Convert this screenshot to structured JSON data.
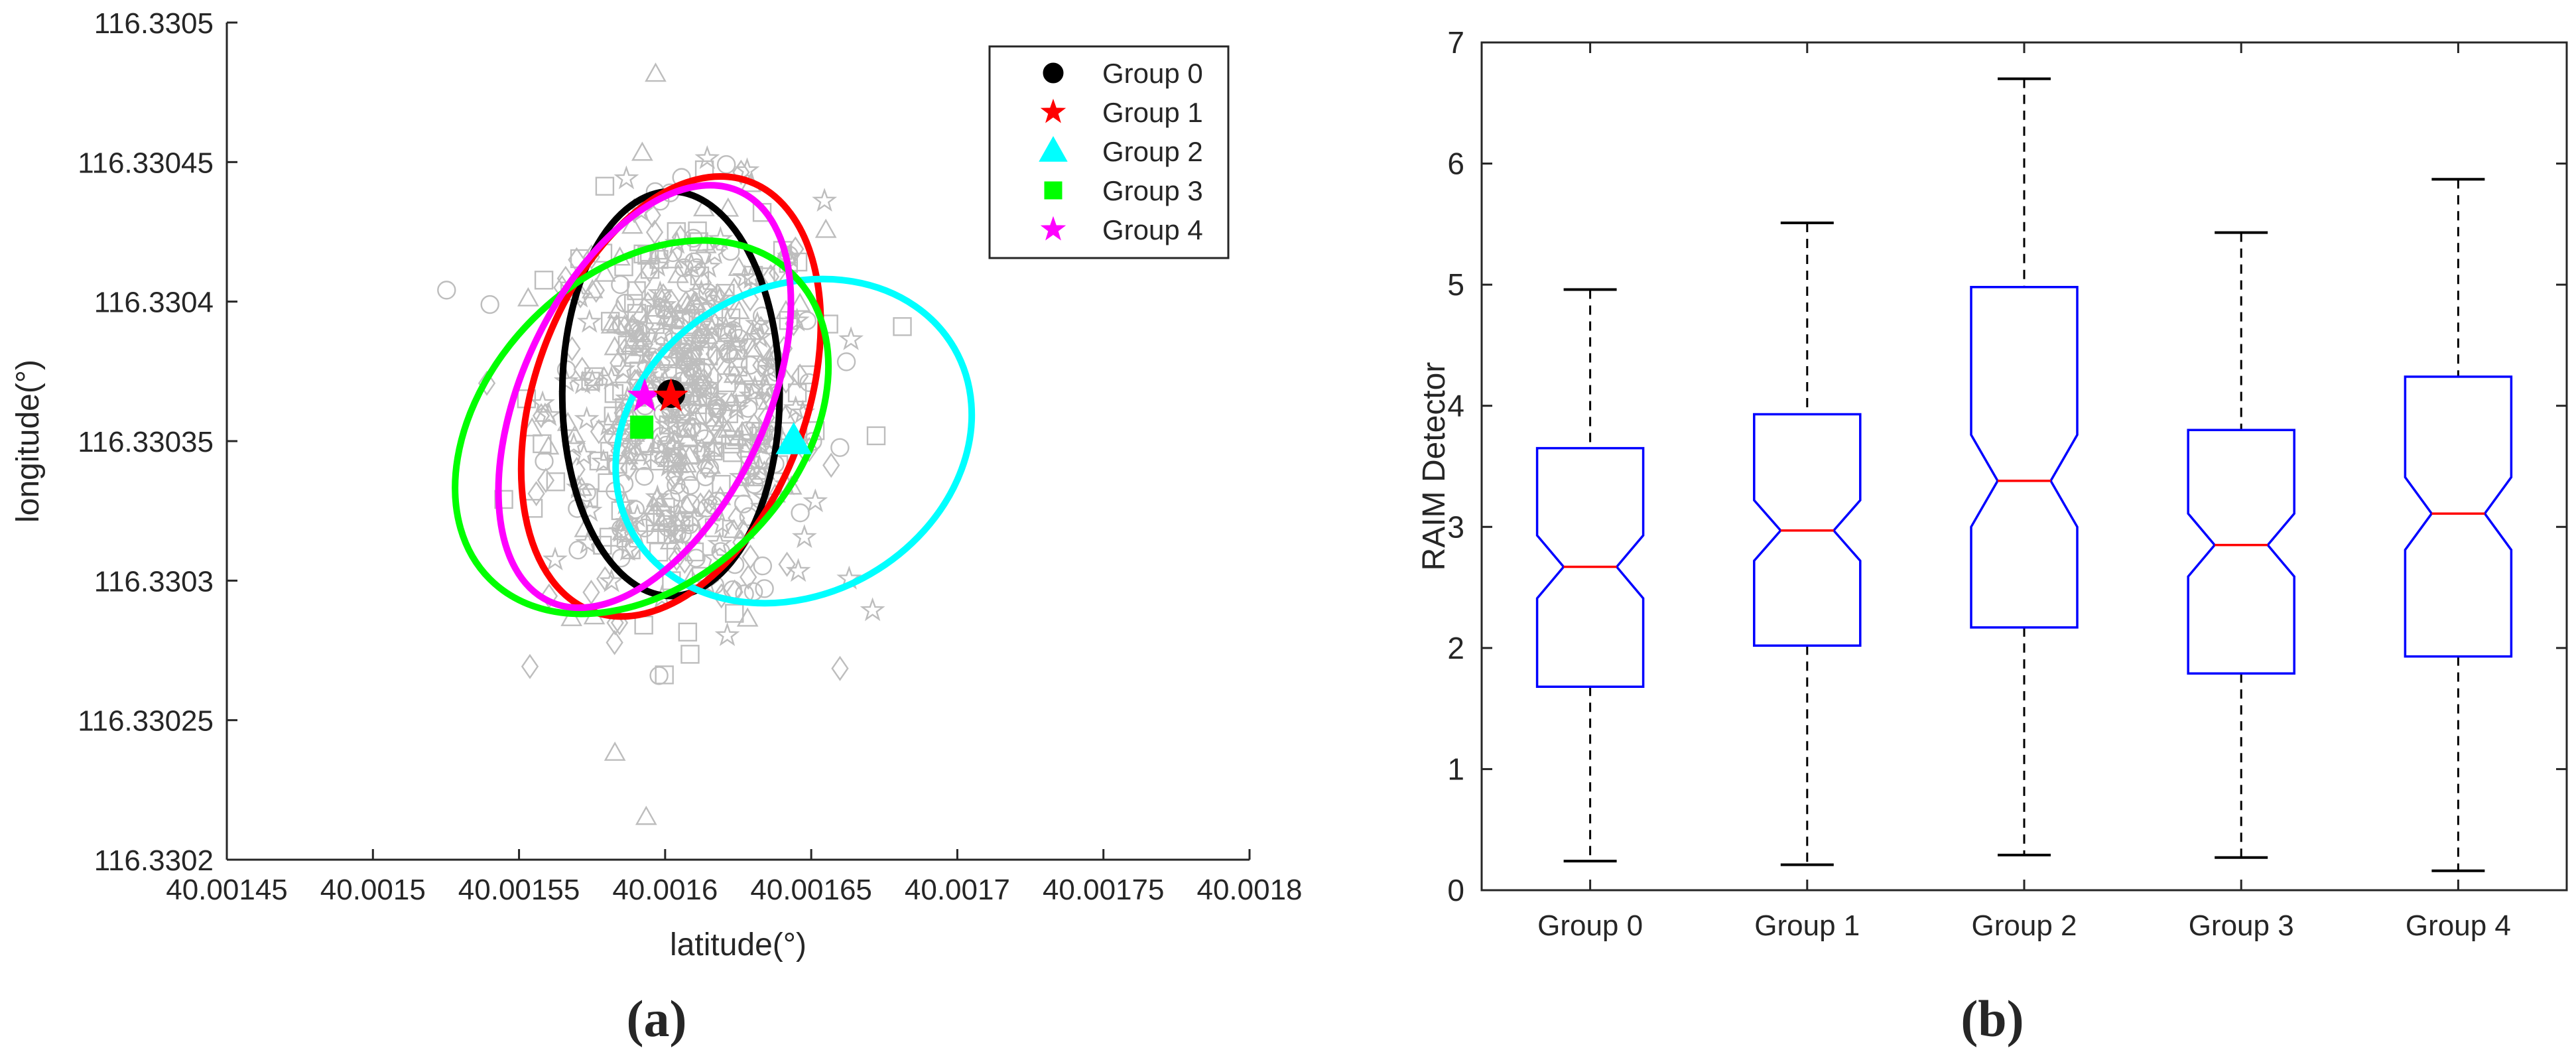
{
  "chart_data": [
    {
      "panel": "(a)",
      "type": "scatter",
      "xlabel": "latitude(°)",
      "ylabel": "longitude(°)",
      "xlim": [
        40.00145,
        40.0018
      ],
      "ylim": [
        116.3302,
        116.3305
      ],
      "xticks": [
        40.00145,
        40.0015,
        40.00155,
        40.0016,
        40.00165,
        40.0017,
        40.00175,
        40.0018
      ],
      "xtick_labels": [
        "40.00145",
        "40.0015",
        "40.00155",
        "40.0016",
        "40.00165",
        "40.0017",
        "40.00175",
        "40.0018"
      ],
      "yticks": [
        116.3302,
        116.33025,
        116.3303,
        116.33035,
        116.3304,
        116.33045,
        116.3305
      ],
      "ytick_labels": [
        "116.3302",
        "116.33025",
        "116.3303",
        "116.33035",
        "116.3304",
        "116.33045",
        "116.3305"
      ],
      "legend_position": "top-right",
      "series": [
        {
          "name": "Group 0",
          "color": "#000000",
          "marker": "circle",
          "center": [
            40.001602,
            116.330367
          ],
          "ellipse": {
            "rx": 3.72e-05,
            "ry": 7.25e-05,
            "angle_deg": 0
          }
        },
        {
          "name": "Group 1",
          "color": "#ff0000",
          "marker": "star",
          "center": [
            40.001602,
            116.330366
          ],
          "ellipse": {
            "rx": 4.65e-05,
            "ry": 8.2e-05,
            "angle_deg": 20
          }
        },
        {
          "name": "Group 2",
          "color": "#00ffff",
          "marker": "triangle",
          "center": [
            40.001644,
            116.33035
          ],
          "ellipse": {
            "rx": 5.25e-05,
            "ry": 6.65e-05,
            "angle_deg": 60
          }
        },
        {
          "name": "Group 3",
          "color": "#00ff00",
          "marker": "square",
          "center": [
            40.001592,
            116.330355
          ],
          "ellipse": {
            "rx": 5.25e-05,
            "ry": 7.7e-05,
            "angle_deg": 45
          }
        },
        {
          "name": "Group 4",
          "color": "#ff00ff",
          "marker": "pentagram",
          "center": [
            40.001593,
            116.330366
          ],
          "ellipse": {
            "rx": 4.18e-05,
            "ry": 8.1e-05,
            "angle_deg": 25
          }
        }
      ],
      "background_points_color": "#bdbdbd"
    },
    {
      "panel": "(b)",
      "type": "box",
      "ylabel": "RAIM Detector",
      "xlabel": "",
      "ylim": [
        0,
        7
      ],
      "yticks": [
        0,
        1,
        2,
        3,
        4,
        5,
        6,
        7
      ],
      "ytick_labels": [
        "0",
        "1",
        "2",
        "3",
        "4",
        "5",
        "6",
        "7"
      ],
      "categories": [
        "Group 0",
        "Group 1",
        "Group 2",
        "Group 3",
        "Group 4"
      ],
      "boxes": [
        {
          "min": 0.24,
          "q1": 1.68,
          "notch_low": 2.41,
          "median": 2.67,
          "notch_high": 2.93,
          "q3": 3.65,
          "max": 4.96
        },
        {
          "min": 0.21,
          "q1": 2.02,
          "notch_low": 2.72,
          "median": 2.97,
          "notch_high": 3.22,
          "q3": 3.93,
          "max": 5.51
        },
        {
          "min": 0.29,
          "q1": 2.17,
          "notch_low": 3.0,
          "median": 3.38,
          "notch_high": 3.76,
          "q3": 4.98,
          "max": 6.7
        },
        {
          "min": 0.27,
          "q1": 1.79,
          "notch_low": 2.59,
          "median": 2.85,
          "notch_high": 3.11,
          "q3": 3.8,
          "max": 5.43
        },
        {
          "min": 0.16,
          "q1": 1.93,
          "notch_low": 2.81,
          "median": 3.11,
          "notch_high": 3.41,
          "q3": 4.24,
          "max": 5.87
        }
      ],
      "box_color": "#0000ff",
      "median_color": "#ff0000",
      "whisker_color": "#000000"
    }
  ]
}
